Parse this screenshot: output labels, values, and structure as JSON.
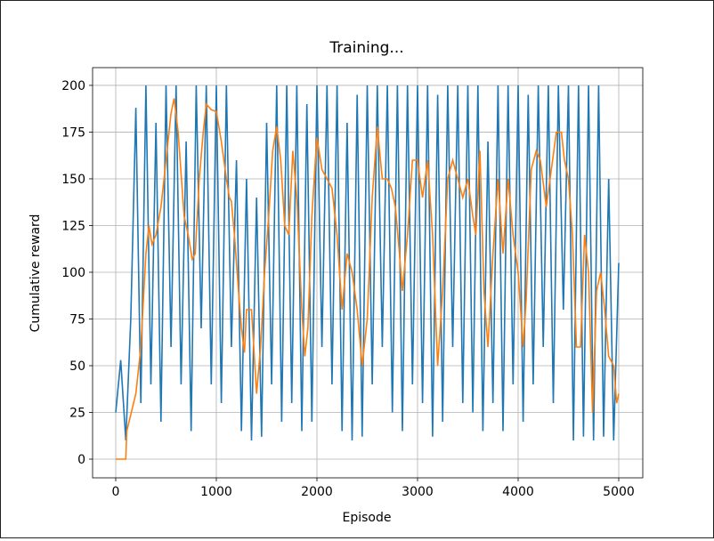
{
  "chart_data": {
    "type": "line",
    "title": "Training...",
    "x_label": "Episode",
    "y_label": "Cumulative reward",
    "xlim": [
      -230,
      5239
    ],
    "ylim": [
      -10,
      209.5
    ],
    "xticks": [
      0,
      1000,
      2000,
      3000,
      4000,
      5000
    ],
    "yticks": [
      0,
      25,
      50,
      75,
      100,
      125,
      150,
      175,
      200
    ],
    "grid": true,
    "series": [
      {
        "color": "#1f77b4",
        "x": [
          0,
          50,
          100,
          150,
          200,
          250,
          300,
          350,
          400,
          450,
          500,
          550,
          600,
          650,
          700,
          750,
          800,
          850,
          900,
          950,
          1000,
          1050,
          1100,
          1150,
          1200,
          1250,
          1300,
          1350,
          1400,
          1450,
          1500,
          1550,
          1600,
          1650,
          1700,
          1750,
          1800,
          1850,
          1900,
          1950,
          2000,
          2050,
          2100,
          2150,
          2200,
          2250,
          2300,
          2350,
          2400,
          2450,
          2500,
          2550,
          2600,
          2650,
          2700,
          2750,
          2800,
          2850,
          2900,
          2950,
          3000,
          3050,
          3100,
          3150,
          3200,
          3250,
          3300,
          3350,
          3400,
          3450,
          3500,
          3550,
          3600,
          3650,
          3700,
          3750,
          3800,
          3850,
          3900,
          3950,
          4000,
          4050,
          4100,
          4150,
          4200,
          4250,
          4300,
          4350,
          4400,
          4450,
          4500,
          4550,
          4600,
          4650,
          4700,
          4750,
          4800,
          4850,
          4900,
          4950,
          5000
        ],
        "values": [
          25,
          53,
          10,
          75,
          188,
          30,
          200,
          40,
          180,
          20,
          200,
          60,
          200,
          40,
          170,
          15,
          200,
          70,
          200,
          40,
          200,
          30,
          200,
          60,
          160,
          15,
          150,
          10,
          140,
          12,
          180,
          40,
          200,
          20,
          200,
          30,
          200,
          15,
          190,
          20,
          200,
          60,
          200,
          40,
          200,
          15,
          180,
          10,
          195,
          12,
          200,
          40,
          200,
          60,
          200,
          25,
          200,
          15,
          200,
          40,
          200,
          30,
          200,
          12,
          195,
          20,
          200,
          60,
          200,
          30,
          200,
          25,
          200,
          15,
          170,
          30,
          200,
          15,
          200,
          40,
          200,
          20,
          195,
          40,
          200,
          60,
          200,
          30,
          200,
          80,
          200,
          10,
          200,
          12,
          200,
          10,
          200,
          12,
          150,
          10,
          105
        ]
      },
      {
        "color": "#ff7f0e",
        "x": [
          0,
          100,
          110,
          200,
          250,
          300,
          330,
          360,
          400,
          450,
          500,
          550,
          580,
          620,
          680,
          720,
          760,
          790,
          830,
          870,
          900,
          950,
          1000,
          1050,
          1100,
          1130,
          1150,
          1180,
          1220,
          1250,
          1280,
          1300,
          1350,
          1400,
          1440,
          1480,
          1520,
          1560,
          1600,
          1640,
          1680,
          1720,
          1760,
          1800,
          1850,
          1880,
          1910,
          1950,
          1990,
          2000,
          2050,
          2100,
          2150,
          2200,
          2250,
          2300,
          2350,
          2400,
          2450,
          2500,
          2550,
          2600,
          2650,
          2700,
          2740,
          2780,
          2820,
          2850,
          2900,
          2950,
          3000,
          3050,
          3100,
          3150,
          3200,
          3250,
          3300,
          3350,
          3400,
          3450,
          3500,
          3550,
          3580,
          3620,
          3660,
          3700,
          3750,
          3800,
          3850,
          3900,
          3950,
          4000,
          4050,
          4080,
          4130,
          4180,
          4220,
          4280,
          4330,
          4380,
          4430,
          4460,
          4500,
          4540,
          4580,
          4620,
          4660,
          4700,
          4740,
          4780,
          4820,
          4860,
          4900,
          4950,
          4980,
          5000
        ],
        "values": [
          0,
          0,
          15,
          35,
          60,
          110,
          125,
          115,
          120,
          135,
          160,
          185,
          193,
          175,
          130,
          120,
          107,
          110,
          150,
          175,
          190,
          187,
          186,
          170,
          150,
          140,
          138,
          120,
          90,
          70,
          57,
          80,
          80,
          35,
          60,
          100,
          130,
          165,
          178,
          160,
          125,
          120,
          165,
          140,
          80,
          55,
          70,
          130,
          165,
          172,
          155,
          150,
          145,
          120,
          80,
          110,
          100,
          80,
          50,
          75,
          140,
          178,
          150,
          150,
          145,
          135,
          110,
          90,
          120,
          160,
          160,
          140,
          160,
          120,
          50,
          90,
          150,
          160,
          150,
          140,
          150,
          130,
          120,
          165,
          90,
          60,
          110,
          150,
          110,
          150,
          120,
          100,
          60,
          85,
          155,
          165,
          160,
          135,
          155,
          175,
          175,
          160,
          150,
          120,
          60,
          60,
          120,
          100,
          25,
          90,
          100,
          80,
          55,
          50,
          30,
          35
        ]
      }
    ]
  }
}
